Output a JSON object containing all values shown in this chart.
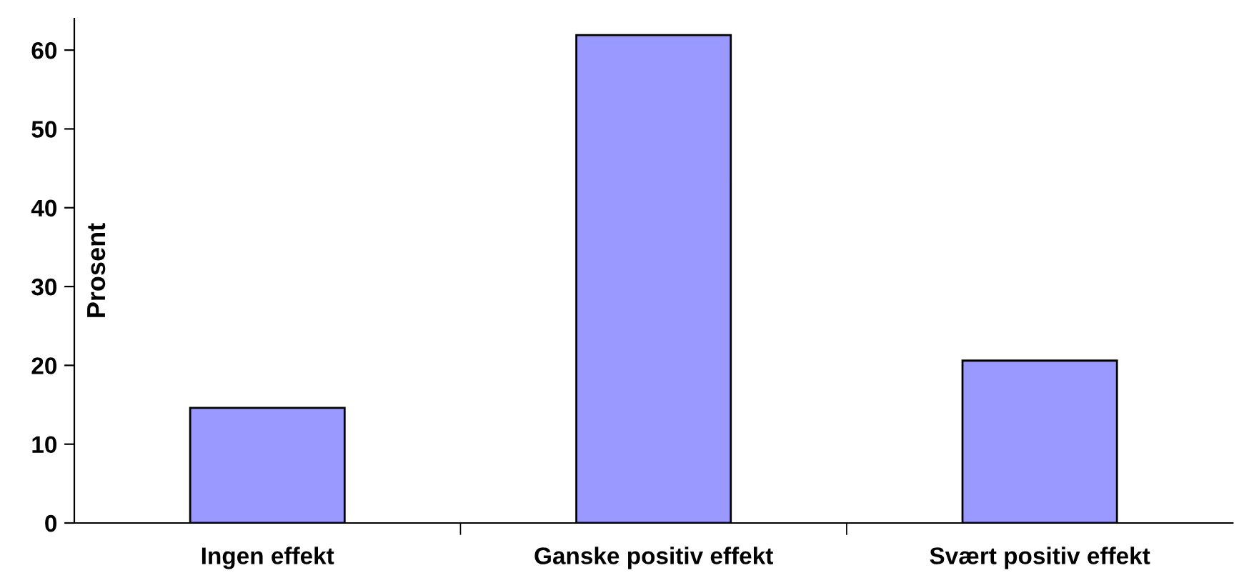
{
  "chart_data": {
    "type": "bar",
    "ylabel": "Prosent",
    "categories": [
      "Ingen effekt",
      "Ganske positiv effekt",
      "Svært positiv effekt"
    ],
    "values": [
      14.6,
      61.9,
      20.6
    ],
    "color": "#9999ff",
    "ylim": [
      0,
      64
    ],
    "yticks": [
      0,
      10,
      20,
      30,
      40,
      50,
      60
    ],
    "grid": false
  }
}
